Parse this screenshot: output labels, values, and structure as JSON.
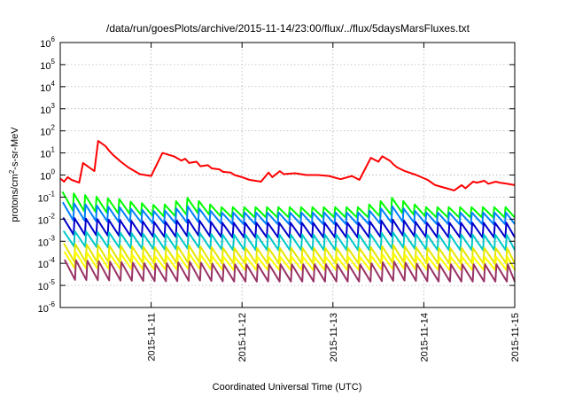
{
  "chart_data": {
    "type": "line",
    "title": "/data/run/goesPlots/archive/2015-11-14/23:00/flux/../flux/5daysMarsFluxes.txt",
    "xlabel": "Coordinated Universal Time (UTC)",
    "ylabel": {
      "base": "protons/cm",
      "sup": "2",
      "rest": "-s-sr-MeV"
    },
    "y_scale": "log",
    "ylim": [
      1e-06,
      1000000.0
    ],
    "xlim": [
      "2015-11-10T00:00",
      "2015-11-15T00:00"
    ],
    "x_ticks": [
      "2015-11-11",
      "2015-11-12",
      "2015-11-13",
      "2015-11-14",
      "2015-11-15"
    ],
    "y_ticks": [
      {
        "base": "10",
        "exp": "6"
      },
      {
        "base": "10",
        "exp": "5"
      },
      {
        "base": "10",
        "exp": "4"
      },
      {
        "base": "10",
        "exp": "3"
      },
      {
        "base": "10",
        "exp": "2"
      },
      {
        "base": "10",
        "exp": "1"
      },
      {
        "base": "10",
        "exp": "0"
      },
      {
        "base": "10",
        "exp": "-1"
      },
      {
        "base": "10",
        "exp": "-2"
      },
      {
        "base": "10",
        "exp": "-3"
      },
      {
        "base": "10",
        "exp": "-4"
      },
      {
        "base": "10",
        "exp": "-5"
      },
      {
        "base": "10",
        "exp": "-6"
      }
    ],
    "grid": true,
    "legend": "none",
    "series": [
      {
        "color": "#ff0000",
        "x": [
          "2015-11-10T00:00",
          "2015-11-10T01:00",
          "2015-11-10T02:00",
          "2015-11-10T03:00",
          "2015-11-10T05:00",
          "2015-11-10T06:00",
          "2015-11-10T08:00",
          "2015-11-10T09:00",
          "2015-11-10T10:00",
          "2015-11-10T12:00",
          "2015-11-10T13:00",
          "2015-11-10T14:00",
          "2015-11-10T16:00",
          "2015-11-10T18:00",
          "2015-11-10T21:00",
          "2015-11-11T00:00",
          "2015-11-11T03:00",
          "2015-11-11T06:00",
          "2015-11-11T08:00",
          "2015-11-11T09:00",
          "2015-11-11T10:00",
          "2015-11-11T12:00",
          "2015-11-11T13:00",
          "2015-11-11T15:00",
          "2015-11-11T16:00",
          "2015-11-11T18:00",
          "2015-11-11T19:00",
          "2015-11-11T21:00",
          "2015-11-11T22:00",
          "2015-11-12T00:00",
          "2015-11-12T02:00",
          "2015-11-12T05:00",
          "2015-11-12T07:00",
          "2015-11-12T08:00",
          "2015-11-12T10:00",
          "2015-11-12T11:00",
          "2015-11-12T14:00",
          "2015-11-12T17:00",
          "2015-11-12T20:00",
          "2015-11-12T23:00",
          "2015-11-13T02:00",
          "2015-11-13T05:00",
          "2015-11-13T07:00",
          "2015-11-13T10:00",
          "2015-11-13T12:00",
          "2015-11-13T13:00",
          "2015-11-13T15:00",
          "2015-11-13T16:00",
          "2015-11-13T17:00",
          "2015-11-13T19:00",
          "2015-11-13T22:00",
          "2015-11-14T01:00",
          "2015-11-14T03:00",
          "2015-11-14T06:00",
          "2015-11-14T08:00",
          "2015-11-14T10:00",
          "2015-11-14T11:00",
          "2015-11-14T13:00",
          "2015-11-14T14:00",
          "2015-11-14T16:00",
          "2015-11-14T17:00",
          "2015-11-14T19:00",
          "2015-11-14T20:00",
          "2015-11-14T22:00",
          "2015-11-15T00:00"
        ],
        "y": [
          0.7,
          0.5,
          0.8,
          0.6,
          0.45,
          3.5,
          2.0,
          1.5,
          35,
          20,
          12,
          8,
          4,
          2.2,
          1.1,
          0.9,
          10,
          7,
          4.5,
          5.5,
          3.5,
          4.0,
          2.5,
          2.8,
          2.0,
          1.8,
          1.4,
          1.3,
          1.0,
          0.8,
          0.6,
          0.5,
          1.3,
          0.8,
          1.5,
          1.1,
          1.2,
          1.0,
          1.0,
          0.9,
          0.65,
          0.9,
          0.6,
          6.0,
          4.0,
          7.0,
          4.5,
          3.0,
          2.2,
          1.5,
          1.0,
          0.6,
          0.35,
          0.25,
          0.2,
          0.35,
          0.25,
          0.5,
          0.45,
          0.55,
          0.4,
          0.5,
          0.45,
          0.4,
          0.35
        ]
      },
      {
        "color": "#00ff00",
        "sawtooth": true,
        "peak": 0.18,
        "trough": 0.025,
        "floor_peak": 0.035,
        "floor_trough": 0.012
      },
      {
        "color": "#0080ff",
        "sawtooth": true,
        "peak": 0.06,
        "trough": 0.009,
        "floor_peak": 0.02,
        "floor_trough": 0.006
      },
      {
        "color": "#0000cc",
        "sawtooth": true,
        "peak": 0.012,
        "trough": 0.002,
        "floor_peak": 0.007,
        "floor_trough": 0.0015
      },
      {
        "color": "#00c8c8",
        "sawtooth": true,
        "peak": 0.003,
        "trough": 0.0006,
        "floor_peak": 0.002,
        "floor_trough": 0.0004
      },
      {
        "color": "#e6e600",
        "sawtooth": true,
        "peak": 0.0008,
        "trough": 0.00012,
        "floor_peak": 0.0005,
        "floor_trough": 0.0001
      },
      {
        "color": "#ffff00",
        "sawtooth": true,
        "peak": 0.00035,
        "trough": 6e-05,
        "floor_peak": 0.0002,
        "floor_trough": 5e-05
      },
      {
        "color": "#993366",
        "sawtooth": true,
        "peak": 0.00015,
        "trough": 1.8e-05,
        "floor_peak": 9e-05,
        "floor_trough": 1.5e-05
      }
    ]
  }
}
